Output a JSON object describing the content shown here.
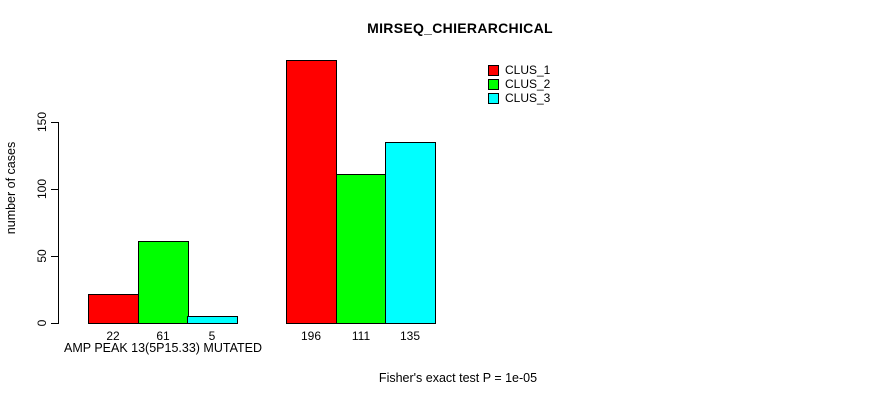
{
  "chart_data": {
    "type": "bar",
    "title": "MIRSEQ_CHIERARCHICAL",
    "ylabel": "number of cases",
    "xlabel": "",
    "yticks": [
      0,
      50,
      100,
      150
    ],
    "ylim": [
      0,
      200
    ],
    "grid": false,
    "legend_position": "top-right",
    "categories": [
      "AMP PEAK 13(5P15.33) MUTATED",
      ""
    ],
    "series": [
      {
        "name": "CLUS_1",
        "color": "#ff0000",
        "values": [
          22,
          196
        ]
      },
      {
        "name": "CLUS_2",
        "color": "#00ff00",
        "values": [
          61,
          111
        ]
      },
      {
        "name": "CLUS_3",
        "color": "#00ffff",
        "values": [
          5,
          135
        ]
      }
    ],
    "caption": "Fisher's exact test P = 1e-05"
  }
}
